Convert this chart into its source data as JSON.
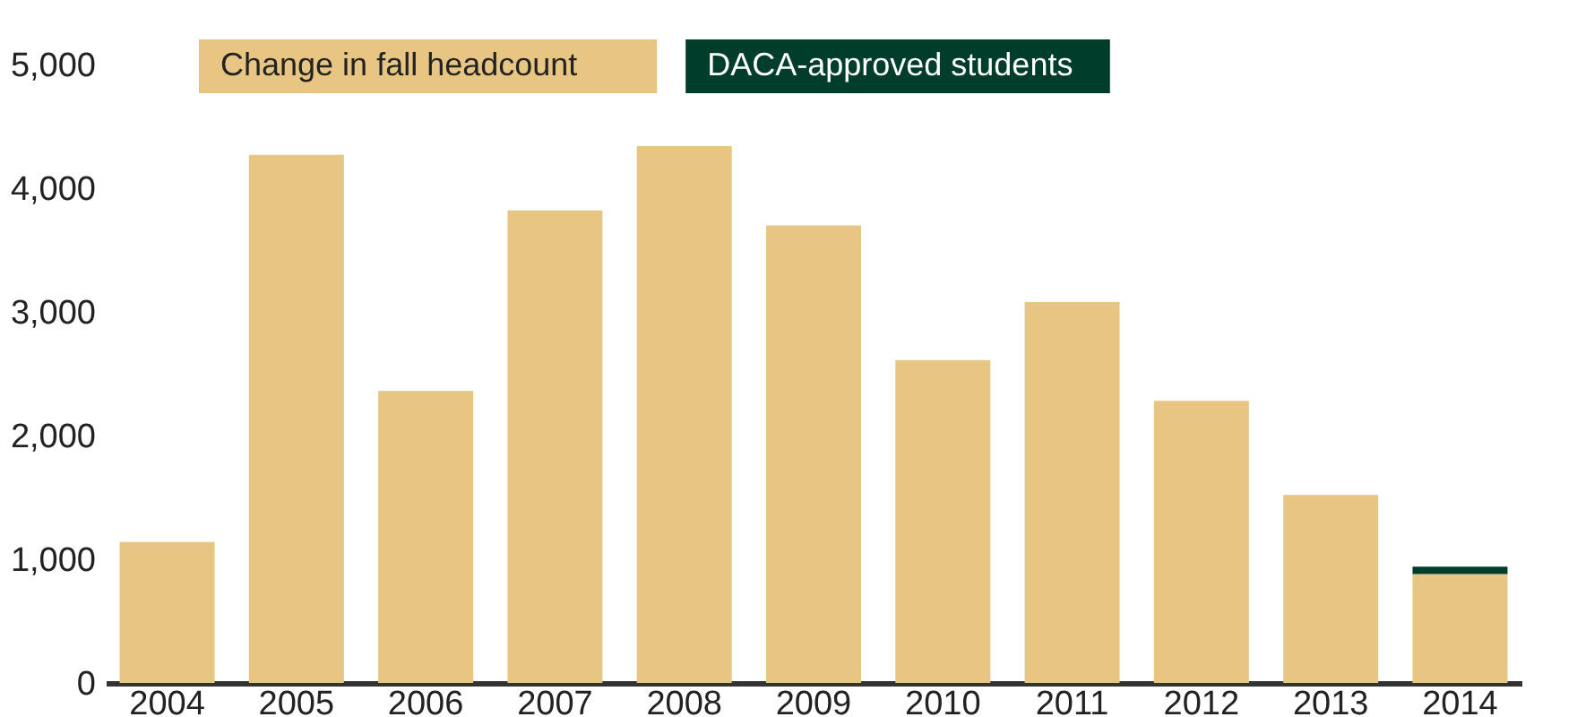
{
  "chart_data": {
    "type": "bar",
    "stacked": true,
    "categories": [
      "2004",
      "2005",
      "2006",
      "2007",
      "2008",
      "2009",
      "2010",
      "2011",
      "2012",
      "2013",
      "2014"
    ],
    "series": [
      {
        "name": "Change in fall headcount",
        "color": "#e7c583",
        "values": [
          1140,
          4270,
          2360,
          3820,
          4340,
          3700,
          2610,
          3080,
          2280,
          1520,
          880
        ]
      },
      {
        "name": "DACA-approved students",
        "color": "#003d2b",
        "values": [
          null,
          null,
          null,
          null,
          null,
          null,
          null,
          null,
          null,
          null,
          60
        ]
      }
    ],
    "ylim": [
      0,
      5000
    ],
    "yticks": [
      0,
      {
        "value": 1000,
        "label": "1,000"
      },
      {
        "value": 2000,
        "label": "2,000"
      },
      {
        "value": 3000,
        "label": "3,000"
      },
      {
        "value": 4000,
        "label": "4,000"
      },
      {
        "value": 5000,
        "label": "5,000"
      }
    ],
    "grid": false,
    "legend": "top"
  }
}
